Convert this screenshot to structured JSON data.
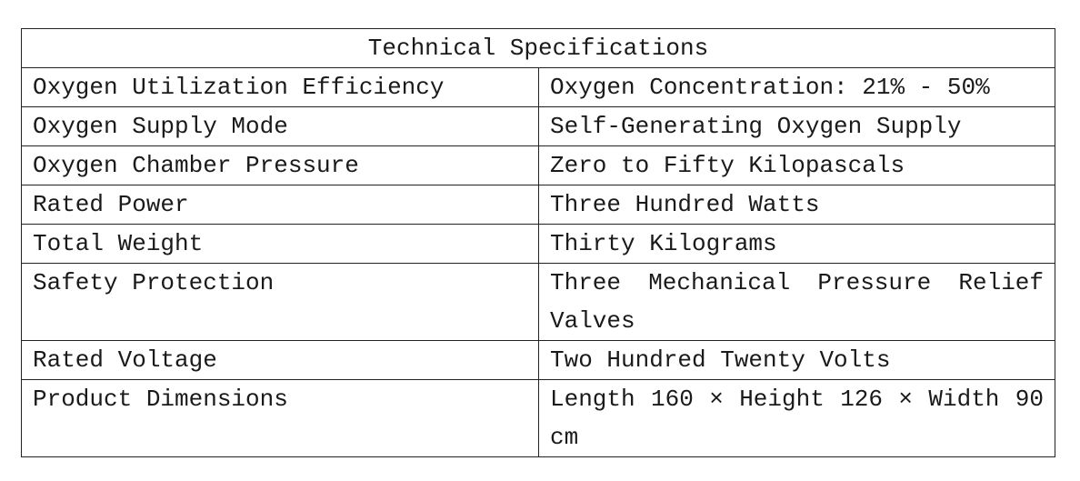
{
  "table": {
    "title": "Technical Specifications",
    "rows": [
      [
        "Oxygen Utilization Efficiency",
        "Oxygen Concentration: 21% - 50%"
      ],
      [
        "Oxygen Supply Mode",
        "Self-Generating Oxygen Supply"
      ],
      [
        "Oxygen Chamber Pressure",
        "Zero to Fifty Kilopascals"
      ],
      [
        "Rated Power",
        "Three Hundred Watts"
      ],
      [
        "Total Weight",
        "Thirty Kilograms"
      ],
      [
        "Safety Protection",
        "Three Mechanical Pressure Relief Valves"
      ],
      [
        "Rated Voltage",
        "Two Hundred Twenty Volts"
      ],
      [
        "Product Dimensions",
        "Length 160 × Height 126 × Width 90 cm"
      ]
    ]
  }
}
